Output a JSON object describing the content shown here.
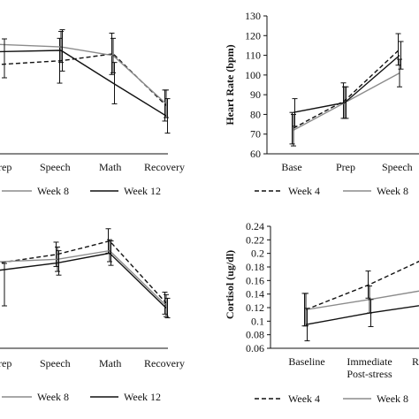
{
  "colors": {
    "week4": "#111111",
    "week8": "#8c8c8c",
    "week12": "#111111",
    "axis": "#111111"
  },
  "chart_data": [
    {
      "type": "line",
      "categories": [
        "Prep",
        "Speech",
        "Math",
        "Recovery"
      ],
      "visible_category_labels": [
        "rep",
        "Speech",
        "Math",
        "Recovery"
      ],
      "series": [
        {
          "name": "Week 4",
          "values": [
            null,
            114,
            118,
            88
          ]
        },
        {
          "name": "Week 8",
          "values": [
            null,
            122,
            117,
            89
          ]
        },
        {
          "name": "Week 12",
          "values": [
            null,
            120,
            101,
            82
          ]
        }
      ],
      "errors": [
        [
          null,
          13,
          12,
          9
        ],
        [
          null,
          9,
          10,
          8
        ],
        [
          null,
          12,
          12,
          10
        ]
      ],
      "legend_visible": [
        "Week 8",
        "Week 12"
      ]
    },
    {
      "type": "line",
      "ylabel": "Heart Rate (bpm)",
      "yticks": [
        60,
        70,
        80,
        90,
        100,
        110,
        120,
        130
      ],
      "ylim": [
        60,
        130
      ],
      "categories": [
        "Base",
        "Prep",
        "Speech"
      ],
      "visible_category_labels": [
        "Base",
        "Prep",
        "Speech"
      ],
      "series": [
        {
          "name": "Week 4",
          "values": [
            73,
            87,
            113
          ]
        },
        {
          "name": "Week 8",
          "values": [
            72,
            86,
            101
          ]
        },
        {
          "name": "Week 12",
          "values": [
            81,
            86,
            110
          ]
        }
      ],
      "errors": [
        [
          8,
          9,
          8
        ],
        [
          8,
          8,
          7
        ],
        [
          7,
          8,
          7
        ]
      ],
      "legend_visible": [
        "Week 4",
        "Week 8"
      ]
    },
    {
      "type": "line",
      "categories": [
        "Prep",
        "Speech",
        "Math",
        "Recovery"
      ],
      "visible_category_labels": [
        "rep",
        "Speech",
        "Math",
        "Recovery"
      ],
      "series": [
        {
          "name": "Week 4",
          "values": [
            null,
            117,
            128,
            77
          ]
        },
        {
          "name": "Week 8",
          "values": [
            null,
            113,
            120,
            75
          ]
        },
        {
          "name": "Week 12",
          "values": [
            null,
            110,
            118,
            73
          ]
        }
      ],
      "errors": [
        [
          null,
          10,
          10,
          9
        ],
        [
          null,
          10,
          9,
          9
        ],
        [
          null,
          10,
          10,
          8
        ]
      ],
      "legend_visible": [
        "Week 8",
        "Week 12"
      ]
    },
    {
      "type": "line",
      "ylabel": "Cortisol (ug/dl)",
      "yticks": [
        "0.06",
        "0.08",
        "0.1",
        "0.12",
        "0.14",
        "0.16",
        "0.18",
        "0.2",
        "0.22",
        "0.24"
      ],
      "ylim": [
        0.06,
        0.24
      ],
      "categories": [
        "Baseline",
        "Immediate Post-stress",
        "R"
      ],
      "visible_category_labels": [
        "Baseline",
        "Immediate",
        "Post-stress",
        "R"
      ],
      "series": [
        {
          "name": "Week 4",
          "values": [
            0.117,
            0.154,
            0.198
          ]
        },
        {
          "name": "Week 8",
          "values": [
            0.117,
            0.132,
            0.148
          ]
        },
        {
          "name": "Week 12",
          "values": [
            0.095,
            0.112,
            0.126
          ]
        }
      ],
      "errors": [
        [
          0.024,
          0.02,
          0
        ],
        [
          0.024,
          0.02,
          0
        ],
        [
          0.024,
          0.02,
          0
        ]
      ],
      "legend_visible": [
        "Week 4",
        "Week 8"
      ]
    }
  ]
}
